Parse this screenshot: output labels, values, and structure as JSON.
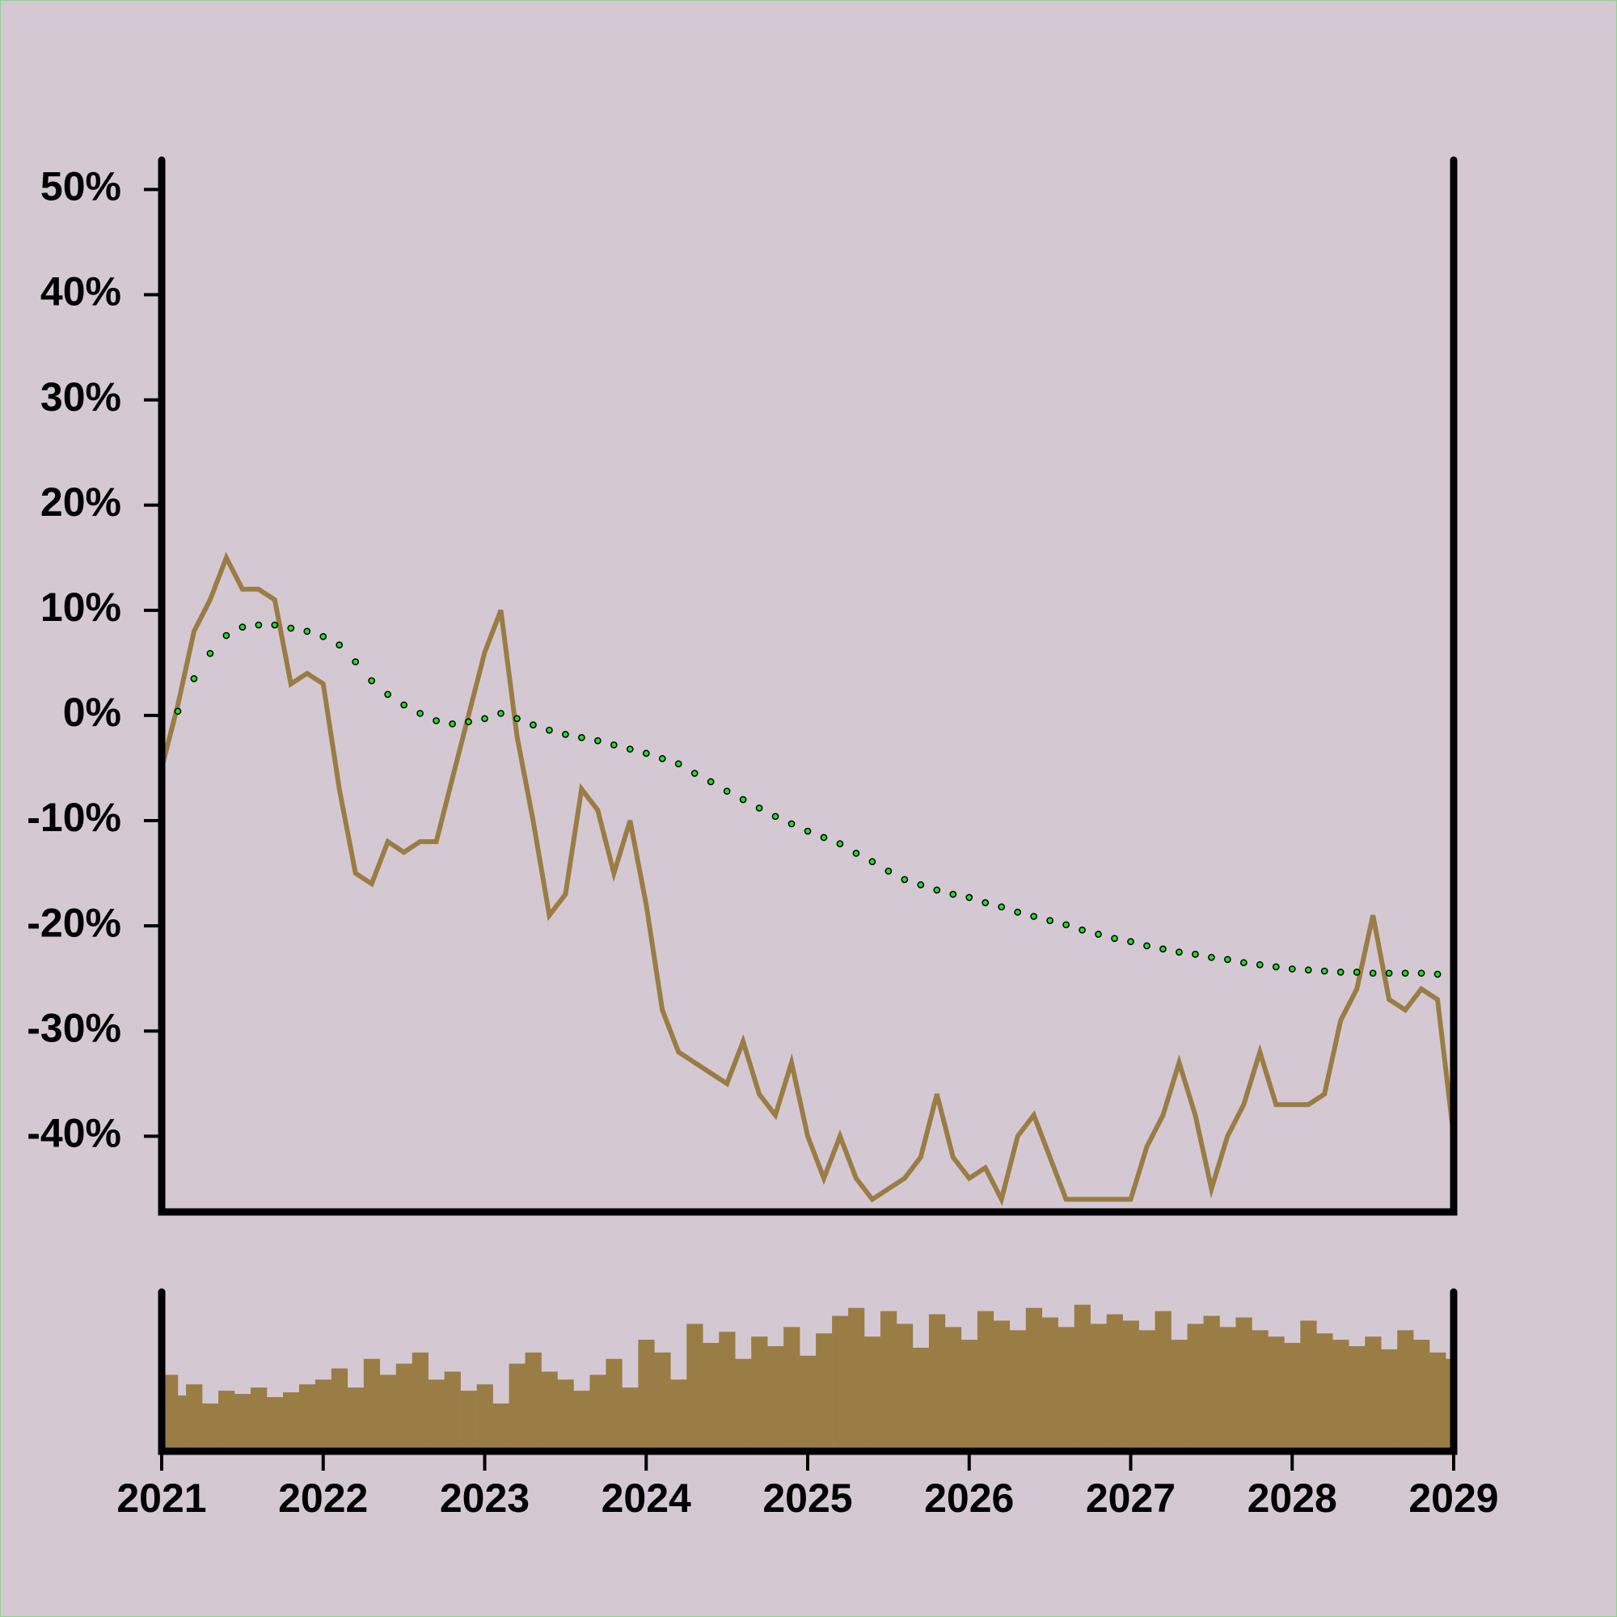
{
  "chart_data": [
    {
      "type": "line",
      "x": [
        2021,
        2021.1,
        2021.2,
        2021.3,
        2021.4,
        2021.5,
        2021.6,
        2021.7,
        2021.8,
        2021.9,
        2022,
        2022.1,
        2022.2,
        2022.3,
        2022.4,
        2022.5,
        2022.6,
        2022.7,
        2022.8,
        2022.9,
        2023,
        2023.1,
        2023.2,
        2023.3,
        2023.4,
        2023.5,
        2023.6,
        2023.7,
        2023.8,
        2023.9,
        2024,
        2024.1,
        2024.2,
        2024.3,
        2024.4,
        2024.5,
        2024.6,
        2024.7,
        2024.8,
        2024.9,
        2025,
        2025.1,
        2025.2,
        2025.3,
        2025.4,
        2025.5,
        2025.6,
        2025.7,
        2025.8,
        2025.9,
        2026,
        2026.1,
        2026.2,
        2026.3,
        2026.4,
        2026.5,
        2026.6,
        2026.7,
        2026.8,
        2026.9,
        2027,
        2027.1,
        2027.2,
        2027.3,
        2027.4,
        2027.5,
        2027.6,
        2027.7,
        2027.8,
        2027.9,
        2028,
        2028.1,
        2028.2,
        2028.3,
        2028.4,
        2028.5,
        2028.6,
        2028.7,
        2028.8,
        2028.9,
        2029
      ],
      "series": [
        {
          "color": "#9a7d45",
          "marker": "none",
          "values": [
            -5,
            1,
            8,
            11,
            15,
            12,
            12,
            11,
            3,
            4,
            3,
            -7,
            -15,
            -16,
            -12,
            -13,
            -12,
            -12,
            -6,
            0,
            6,
            10,
            -2,
            -10,
            -19,
            -17,
            -7,
            -9,
            -15,
            -10,
            -18,
            -28,
            -32,
            -33,
            -34,
            -35,
            -31,
            -36,
            -38,
            -33,
            -40,
            -44,
            -40,
            -44,
            -46,
            -45,
            -44,
            -42,
            -36,
            -42,
            -44,
            -43,
            -46,
            -40,
            -38,
            -42,
            -46,
            -46,
            -46,
            -46,
            -46,
            -41,
            -38,
            -33,
            -38,
            -45,
            -40,
            -37,
            -32,
            -37,
            -37,
            -37,
            -36,
            -29,
            -26,
            -19,
            -27,
            -28,
            -26,
            -27,
            -40
          ]
        },
        {
          "color": "#22dd22",
          "marker": "dots",
          "values": [
            0,
            0.4,
            3.5,
            5.9,
            7.6,
            8.4,
            8.6,
            8.6,
            8.3,
            8.0,
            7.5,
            6.7,
            5.1,
            3.3,
            2.0,
            1.0,
            0.2,
            -0.5,
            -0.8,
            -0.6,
            -0.3,
            0.2,
            -0.3,
            -0.9,
            -1.4,
            -1.8,
            -2.1,
            -2.4,
            -2.8,
            -3.2,
            -3.6,
            -4.1,
            -4.6,
            -5.5,
            -6.3,
            -7.2,
            -8.0,
            -8.8,
            -9.6,
            -10.3,
            -11.0,
            -11.6,
            -12.2,
            -13.1,
            -13.9,
            -14.8,
            -15.6,
            -16.1,
            -16.6,
            -17.0,
            -17.3,
            -17.8,
            -18.2,
            -18.7,
            -19.1,
            -19.5,
            -19.9,
            -20.4,
            -20.8,
            -21.2,
            -21.5,
            -21.9,
            -22.2,
            -22.5,
            -22.7,
            -23.0,
            -23.2,
            -23.5,
            -23.7,
            -23.9,
            -24.1,
            -24.2,
            -24.3,
            -24.4,
            -24.4,
            -24.5,
            -24.5,
            -24.5,
            -24.5,
            -24.6,
            -24.7
          ]
        }
      ],
      "xlim": [
        2021,
        2029
      ],
      "ylim": [
        -47.2,
        52.8
      ],
      "yticks": [
        {
          "value": 50,
          "label": "50%"
        },
        {
          "value": 40,
          "label": "40%"
        },
        {
          "value": 30,
          "label": "30%"
        },
        {
          "value": 20,
          "label": "20%"
        },
        {
          "value": 10,
          "label": "10%"
        },
        {
          "value": 0,
          "label": "0%"
        },
        {
          "value": -10,
          "label": "-10%"
        },
        {
          "value": -20,
          "label": "-20%"
        },
        {
          "value": -30,
          "label": "-30%"
        },
        {
          "value": -40,
          "label": "-40%"
        }
      ]
    },
    {
      "type": "bar",
      "x": [
        2021,
        2021.1,
        2021.2,
        2021.3,
        2021.4,
        2021.5,
        2021.6,
        2021.7,
        2021.8,
        2021.9,
        2022,
        2022.1,
        2022.2,
        2022.3,
        2022.4,
        2022.5,
        2022.6,
        2022.7,
        2022.8,
        2022.9,
        2023,
        2023.1,
        2023.2,
        2023.3,
        2023.4,
        2023.5,
        2023.6,
        2023.7,
        2023.8,
        2023.9,
        2024,
        2024.1,
        2024.2,
        2024.3,
        2024.4,
        2024.5,
        2024.6,
        2024.7,
        2024.8,
        2024.9,
        2025,
        2025.1,
        2025.2,
        2025.3,
        2025.4,
        2025.5,
        2025.6,
        2025.7,
        2025.8,
        2025.9,
        2026,
        2026.1,
        2026.2,
        2026.3,
        2026.4,
        2026.5,
        2026.6,
        2026.7,
        2026.8,
        2026.9,
        2027,
        2027.1,
        2027.2,
        2027.3,
        2027.4,
        2027.5,
        2027.6,
        2027.7,
        2027.8,
        2027.9,
        2028,
        2028.1,
        2028.2,
        2028.3,
        2028.4,
        2028.5,
        2028.6,
        2028.7,
        2028.8,
        2028.9,
        2029
      ],
      "values": [
        48,
        35,
        42,
        30,
        38,
        36,
        40,
        34,
        37,
        42,
        45,
        52,
        40,
        58,
        48,
        55,
        62,
        45,
        50,
        38,
        42,
        30,
        55,
        62,
        50,
        45,
        38,
        48,
        58,
        40,
        70,
        62,
        45,
        80,
        68,
        75,
        58,
        72,
        66,
        78,
        60,
        74,
        85,
        90,
        72,
        88,
        80,
        65,
        86,
        78,
        70,
        88,
        82,
        76,
        90,
        84,
        78,
        92,
        80,
        86,
        82,
        76,
        88,
        70,
        80,
        85,
        78,
        84,
        76,
        72,
        68,
        82,
        74,
        70,
        66,
        72,
        64,
        76,
        70,
        62,
        58
      ],
      "color": "#9a7d45",
      "xlim": [
        2021,
        2029
      ],
      "ylim": [
        0,
        100
      ],
      "xticks": [
        2021,
        2022,
        2023,
        2024,
        2025,
        2026,
        2027,
        2028,
        2029
      ]
    }
  ]
}
